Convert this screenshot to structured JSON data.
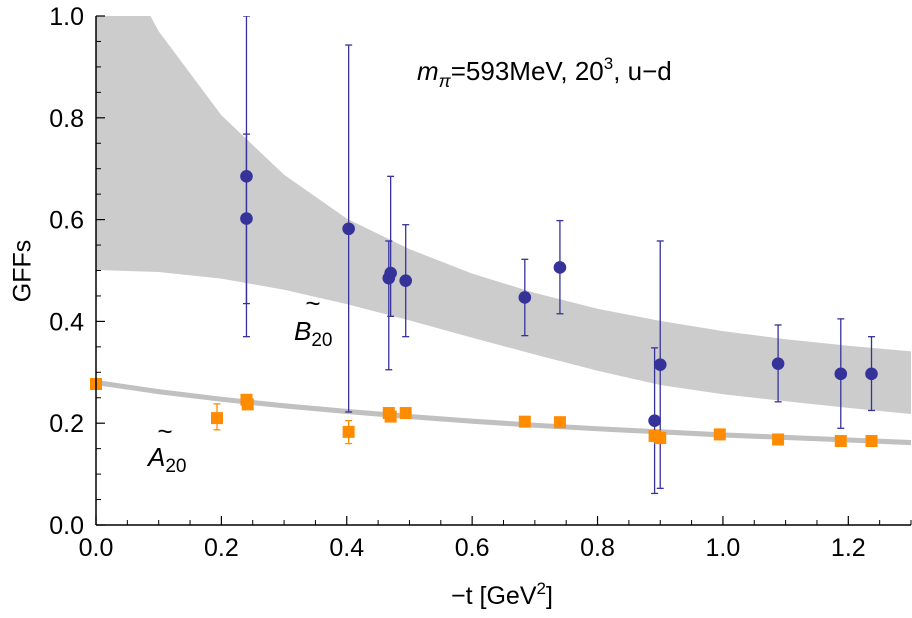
{
  "chart_data": {
    "type": "scatter",
    "title": "",
    "annotation": {
      "m": "m",
      "pi": "π",
      "rest1": "=593MeV, 20",
      "sup": "3",
      "rest2": ", u−d"
    },
    "xlabel": {
      "main": "−t [GeV",
      "sup": "2",
      "close": "]"
    },
    "ylabel": "GFFs",
    "xlim": [
      0.0,
      1.3
    ],
    "ylim": [
      0.0,
      1.0
    ],
    "xticks": [
      "0.0",
      "0.2",
      "0.4",
      "0.6",
      "0.8",
      "1.0",
      "1.2"
    ],
    "xtick_values": [
      0.0,
      0.2,
      0.4,
      0.6,
      0.8,
      1.0,
      1.2
    ],
    "yticks": [
      "0.0",
      "0.2",
      "0.4",
      "0.6",
      "0.8",
      "1.0"
    ],
    "ytick_values": [
      0.0,
      0.2,
      0.4,
      0.6,
      0.8,
      1.0
    ],
    "grid": false,
    "curve_labels": {
      "B20": {
        "tilde": "~",
        "letter": "B",
        "sub": "20"
      },
      "A20": {
        "tilde": "~",
        "letter": "A",
        "sub": "20"
      }
    },
    "series": [
      {
        "name": "B20",
        "marker": "circle",
        "color": "#35339a",
        "points": [
          {
            "x": 0.24,
            "y": 0.685,
            "lo": 0.435,
            "hi": 1.0
          },
          {
            "x": 0.24,
            "y": 0.602,
            "lo": 0.37,
            "hi": 0.768
          },
          {
            "x": 0.403,
            "y": 0.582,
            "lo": 0.222,
            "hi": 0.943
          },
          {
            "x": 0.467,
            "y": 0.485,
            "lo": 0.305,
            "hi": 0.558
          },
          {
            "x": 0.47,
            "y": 0.495,
            "lo": 0.41,
            "hi": 0.685
          },
          {
            "x": 0.494,
            "y": 0.48,
            "lo": 0.37,
            "hi": 0.59
          },
          {
            "x": 0.684,
            "y": 0.447,
            "lo": 0.372,
            "hi": 0.522
          },
          {
            "x": 0.74,
            "y": 0.506,
            "lo": 0.415,
            "hi": 0.598
          },
          {
            "x": 0.891,
            "y": 0.205,
            "lo": 0.062,
            "hi": 0.348
          },
          {
            "x": 0.9,
            "y": 0.315,
            "lo": 0.072,
            "hi": 0.558
          },
          {
            "x": 1.088,
            "y": 0.317,
            "lo": 0.242,
            "hi": 0.393
          },
          {
            "x": 1.188,
            "y": 0.297,
            "lo": 0.19,
            "hi": 0.405
          },
          {
            "x": 1.237,
            "y": 0.297,
            "lo": 0.225,
            "hi": 0.37
          }
        ]
      },
      {
        "name": "A20",
        "marker": "square",
        "color": "#ff8c00",
        "points": [
          {
            "x": 0.0,
            "y": 0.277,
            "lo": 0.272,
            "hi": 0.282
          },
          {
            "x": 0.193,
            "y": 0.21,
            "lo": 0.187,
            "hi": 0.238
          },
          {
            "x": 0.24,
            "y": 0.246,
            "lo": 0.237,
            "hi": 0.255
          },
          {
            "x": 0.242,
            "y": 0.237,
            "lo": 0.228,
            "hi": 0.246
          },
          {
            "x": 0.403,
            "y": 0.183,
            "lo": 0.16,
            "hi": 0.205
          },
          {
            "x": 0.467,
            "y": 0.22,
            "lo": 0.214,
            "hi": 0.226
          },
          {
            "x": 0.47,
            "y": 0.213,
            "lo": 0.206,
            "hi": 0.22
          },
          {
            "x": 0.494,
            "y": 0.22,
            "lo": 0.214,
            "hi": 0.226
          },
          {
            "x": 0.684,
            "y": 0.203,
            "lo": 0.198,
            "hi": 0.208
          },
          {
            "x": 0.74,
            "y": 0.202,
            "lo": 0.197,
            "hi": 0.207
          },
          {
            "x": 0.891,
            "y": 0.175,
            "lo": 0.165,
            "hi": 0.185
          },
          {
            "x": 0.9,
            "y": 0.171,
            "lo": 0.16,
            "hi": 0.182
          },
          {
            "x": 0.995,
            "y": 0.178,
            "lo": 0.173,
            "hi": 0.183
          },
          {
            "x": 1.088,
            "y": 0.168,
            "lo": 0.162,
            "hi": 0.174
          },
          {
            "x": 1.188,
            "y": 0.165,
            "lo": 0.158,
            "hi": 0.172
          },
          {
            "x": 1.237,
            "y": 0.165,
            "lo": 0.16,
            "hi": 0.17
          }
        ]
      }
    ],
    "bands": [
      {
        "name": "B20 fit band",
        "color": "#cccccc",
        "x": [
          0.0,
          0.1,
          0.2,
          0.3,
          0.4,
          0.5,
          0.6,
          0.7,
          0.8,
          0.9,
          1.0,
          1.1,
          1.2,
          1.3
        ],
        "upper": [
          1.2,
          0.97,
          0.805,
          0.688,
          0.602,
          0.542,
          0.494,
          0.456,
          0.425,
          0.401,
          0.381,
          0.365,
          0.352,
          0.341
        ],
        "lower": [
          0.501,
          0.497,
          0.484,
          0.462,
          0.434,
          0.402,
          0.368,
          0.335,
          0.303,
          0.275,
          0.257,
          0.243,
          0.23,
          0.218
        ]
      },
      {
        "name": "A20 fit band",
        "color": "#c0c0c0",
        "x": [
          0.0,
          0.1,
          0.2,
          0.3,
          0.4,
          0.5,
          0.6,
          0.7,
          0.8,
          0.9,
          1.0,
          1.1,
          1.2,
          1.3
        ],
        "upper": [
          0.285,
          0.267,
          0.252,
          0.239,
          0.228,
          0.218,
          0.209,
          0.201,
          0.194,
          0.188,
          0.182,
          0.177,
          0.172,
          0.167
        ],
        "lower": [
          0.275,
          0.257,
          0.242,
          0.229,
          0.218,
          0.208,
          0.199,
          0.191,
          0.184,
          0.178,
          0.172,
          0.167,
          0.162,
          0.157
        ]
      }
    ]
  }
}
